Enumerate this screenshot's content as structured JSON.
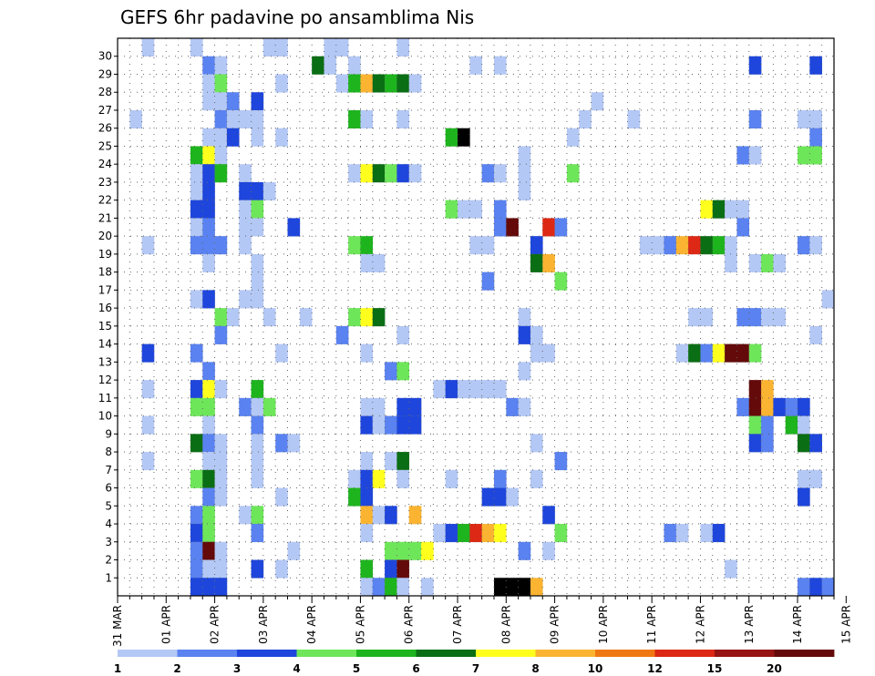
{
  "chart_data": {
    "type": "heatmap",
    "title": "GEFS 6hr padavine po ansamblima Nis",
    "xlabel": "",
    "ylabel": "",
    "y_tick_labels": [
      "1",
      "2",
      "3",
      "4",
      "5",
      "6",
      "7",
      "8",
      "9",
      "10",
      "11",
      "12",
      "13",
      "14",
      "15",
      "16",
      "17",
      "18",
      "19",
      "20",
      "21",
      "22",
      "23",
      "24",
      "25",
      "26",
      "27",
      "28",
      "29",
      "30"
    ],
    "x_tick_labels": [
      "31 MAR",
      "01 APR",
      "02 APR",
      "03 APR",
      "04 APR",
      "05 APR",
      "06 APR",
      "07 APR",
      "08 APR",
      "09 APR",
      "10 APR",
      "11 APR",
      "12 APR",
      "13 APR",
      "14 APR",
      "15 APR"
    ],
    "grid": true,
    "legend": {
      "placement": "bottom",
      "labels": [
        "1",
        "2",
        "3",
        "4",
        "5",
        "6",
        "7",
        "8",
        "10",
        "12",
        "15",
        "20"
      ],
      "colors": [
        "#b4c8f5",
        "#5a82f0",
        "#1e46dc",
        "#6ee65a",
        "#1eb41e",
        "#0a6e14",
        "#ffff1e",
        "#fab432",
        "#f07814",
        "#dc2814",
        "#961414",
        "#640a0a"
      ]
    },
    "bins": [
      {
        "id": "b1",
        "color": "#b4c8f5"
      },
      {
        "id": "b2",
        "color": "#5a82f0"
      },
      {
        "id": "b3",
        "color": "#1e46dc"
      },
      {
        "id": "b4",
        "color": "#6ee65a"
      },
      {
        "id": "b5",
        "color": "#1eb41e"
      },
      {
        "id": "b6",
        "color": "#0a6e14"
      },
      {
        "id": "b7",
        "color": "#ffff1e"
      },
      {
        "id": "b8",
        "color": "#fab432"
      },
      {
        "id": "b10",
        "color": "#f07814"
      },
      {
        "id": "b12",
        "color": "#dc2814"
      },
      {
        "id": "b15",
        "color": "#961414"
      },
      {
        "id": "b20",
        "color": "#640a0a"
      }
    ],
    "cells": [
      [
        30,
        2,
        1
      ],
      [
        30,
        6,
        1
      ],
      [
        30,
        12,
        1
      ],
      [
        30,
        13,
        1
      ],
      [
        30,
        17,
        1
      ],
      [
        30,
        18,
        1
      ],
      [
        30,
        23,
        1
      ],
      [
        29,
        7,
        2
      ],
      [
        29,
        8,
        1
      ],
      [
        29,
        16,
        6
      ],
      [
        29,
        17,
        1
      ],
      [
        29,
        19,
        1
      ],
      [
        29,
        29,
        1
      ],
      [
        29,
        31,
        1
      ],
      [
        29,
        52,
        3
      ],
      [
        29,
        57,
        3
      ],
      [
        28,
        7,
        1
      ],
      [
        28,
        8,
        4
      ],
      [
        28,
        13,
        1
      ],
      [
        28,
        18,
        1
      ],
      [
        28,
        19,
        5
      ],
      [
        28,
        20,
        8
      ],
      [
        28,
        21,
        6
      ],
      [
        28,
        22,
        5
      ],
      [
        28,
        23,
        6
      ],
      [
        28,
        24,
        1
      ],
      [
        27,
        7,
        1
      ],
      [
        27,
        8,
        1
      ],
      [
        27,
        9,
        2
      ],
      [
        27,
        11,
        3
      ],
      [
        27,
        39,
        1
      ],
      [
        26,
        1,
        1
      ],
      [
        26,
        8,
        2
      ],
      [
        26,
        9,
        1
      ],
      [
        26,
        10,
        1
      ],
      [
        26,
        11,
        1
      ],
      [
        26,
        19,
        5
      ],
      [
        26,
        20,
        1
      ],
      [
        26,
        23,
        1
      ],
      [
        26,
        38,
        1
      ],
      [
        26,
        42,
        1
      ],
      [
        26,
        52,
        2
      ],
      [
        26,
        56,
        1
      ],
      [
        26,
        57,
        1
      ],
      [
        25,
        7,
        1
      ],
      [
        25,
        8,
        1
      ],
      [
        25,
        9,
        3
      ],
      [
        25,
        11,
        1
      ],
      [
        25,
        13,
        1
      ],
      [
        25,
        27,
        5
      ],
      [
        25,
        28,
        20
      ],
      [
        25,
        37,
        1
      ],
      [
        25,
        57,
        2
      ],
      [
        24,
        6,
        5
      ],
      [
        24,
        7,
        7
      ],
      [
        24,
        8,
        1
      ],
      [
        24,
        33,
        1
      ],
      [
        24,
        51,
        2
      ],
      [
        24,
        52,
        1
      ],
      [
        24,
        56,
        4
      ],
      [
        24,
        57,
        4
      ],
      [
        23,
        6,
        1
      ],
      [
        23,
        7,
        3
      ],
      [
        23,
        8,
        5
      ],
      [
        23,
        10,
        1
      ],
      [
        23,
        19,
        1
      ],
      [
        23,
        20,
        7
      ],
      [
        23,
        21,
        6
      ],
      [
        23,
        22,
        4
      ],
      [
        23,
        23,
        3
      ],
      [
        23,
        24,
        1
      ],
      [
        23,
        30,
        2
      ],
      [
        23,
        31,
        1
      ],
      [
        23,
        33,
        1
      ],
      [
        23,
        37,
        4
      ],
      [
        22,
        6,
        1
      ],
      [
        22,
        7,
        3
      ],
      [
        22,
        10,
        3
      ],
      [
        22,
        11,
        3
      ],
      [
        22,
        12,
        1
      ],
      [
        22,
        33,
        1
      ],
      [
        21,
        6,
        3
      ],
      [
        21,
        7,
        3
      ],
      [
        21,
        10,
        1
      ],
      [
        21,
        11,
        4
      ],
      [
        21,
        27,
        4
      ],
      [
        21,
        28,
        1
      ],
      [
        21,
        29,
        1
      ],
      [
        21,
        31,
        2
      ],
      [
        21,
        48,
        7
      ],
      [
        21,
        49,
        6
      ],
      [
        21,
        50,
        1
      ],
      [
        21,
        51,
        1
      ],
      [
        20,
        6,
        1
      ],
      [
        20,
        7,
        2
      ],
      [
        20,
        10,
        1
      ],
      [
        20,
        11,
        1
      ],
      [
        20,
        14,
        3
      ],
      [
        20,
        31,
        2
      ],
      [
        20,
        32,
        12
      ],
      [
        20,
        35,
        10
      ],
      [
        20,
        36,
        2
      ],
      [
        20,
        51,
        2
      ],
      [
        19,
        2,
        1
      ],
      [
        19,
        6,
        2
      ],
      [
        19,
        7,
        2
      ],
      [
        19,
        8,
        2
      ],
      [
        19,
        10,
        1
      ],
      [
        19,
        19,
        4
      ],
      [
        19,
        20,
        5
      ],
      [
        19,
        29,
        1
      ],
      [
        19,
        30,
        1
      ],
      [
        19,
        34,
        3
      ],
      [
        19,
        43,
        1
      ],
      [
        19,
        44,
        1
      ],
      [
        19,
        45,
        2
      ],
      [
        19,
        46,
        8
      ],
      [
        19,
        47,
        10
      ],
      [
        19,
        48,
        6
      ],
      [
        19,
        49,
        5
      ],
      [
        19,
        50,
        1
      ],
      [
        19,
        56,
        2
      ],
      [
        19,
        57,
        1
      ],
      [
        18,
        7,
        1
      ],
      [
        18,
        11,
        1
      ],
      [
        18,
        20,
        1
      ],
      [
        18,
        21,
        1
      ],
      [
        18,
        34,
        6
      ],
      [
        18,
        35,
        8
      ],
      [
        18,
        50,
        1
      ],
      [
        18,
        52,
        1
      ],
      [
        18,
        53,
        4
      ],
      [
        18,
        54,
        1
      ],
      [
        17,
        11,
        1
      ],
      [
        17,
        30,
        2
      ],
      [
        17,
        36,
        4
      ],
      [
        16,
        6,
        1
      ],
      [
        16,
        7,
        3
      ],
      [
        16,
        10,
        1
      ],
      [
        16,
        11,
        1
      ],
      [
        16,
        58,
        1
      ],
      [
        15,
        8,
        4
      ],
      [
        15,
        9,
        1
      ],
      [
        15,
        12,
        1
      ],
      [
        15,
        15,
        1
      ],
      [
        15,
        19,
        4
      ],
      [
        15,
        20,
        7
      ],
      [
        15,
        21,
        6
      ],
      [
        15,
        33,
        1
      ],
      [
        15,
        47,
        1
      ],
      [
        15,
        48,
        1
      ],
      [
        15,
        51,
        2
      ],
      [
        15,
        52,
        2
      ],
      [
        15,
        53,
        1
      ],
      [
        15,
        54,
        1
      ],
      [
        14,
        8,
        2
      ],
      [
        14,
        18,
        2
      ],
      [
        14,
        23,
        1
      ],
      [
        14,
        33,
        3
      ],
      [
        14,
        34,
        1
      ],
      [
        14,
        57,
        1
      ],
      [
        13,
        2,
        3
      ],
      [
        13,
        6,
        2
      ],
      [
        13,
        13,
        1
      ],
      [
        13,
        20,
        1
      ],
      [
        13,
        34,
        1
      ],
      [
        13,
        35,
        1
      ],
      [
        13,
        46,
        1
      ],
      [
        13,
        47,
        6
      ],
      [
        13,
        48,
        2
      ],
      [
        13,
        49,
        7
      ],
      [
        13,
        50,
        12
      ],
      [
        13,
        51,
        12
      ],
      [
        13,
        52,
        4
      ],
      [
        12,
        7,
        2
      ],
      [
        12,
        22,
        2
      ],
      [
        12,
        23,
        4
      ],
      [
        12,
        33,
        1
      ],
      [
        11,
        2,
        1
      ],
      [
        11,
        6,
        3
      ],
      [
        11,
        7,
        7
      ],
      [
        11,
        8,
        1
      ],
      [
        11,
        11,
        5
      ],
      [
        11,
        26,
        1
      ],
      [
        11,
        27,
        3
      ],
      [
        11,
        28,
        1
      ],
      [
        11,
        29,
        1
      ],
      [
        11,
        30,
        1
      ],
      [
        11,
        31,
        1
      ],
      [
        11,
        52,
        12
      ],
      [
        11,
        53,
        8
      ],
      [
        10,
        6,
        4
      ],
      [
        10,
        7,
        4
      ],
      [
        10,
        10,
        2
      ],
      [
        10,
        11,
        1
      ],
      [
        10,
        12,
        4
      ],
      [
        10,
        20,
        1
      ],
      [
        10,
        21,
        1
      ],
      [
        10,
        23,
        3
      ],
      [
        10,
        24,
        3
      ],
      [
        10,
        32,
        2
      ],
      [
        10,
        33,
        1
      ],
      [
        10,
        51,
        2
      ],
      [
        10,
        52,
        12
      ],
      [
        10,
        53,
        8
      ],
      [
        10,
        54,
        3
      ],
      [
        10,
        55,
        2
      ],
      [
        10,
        56,
        3
      ],
      [
        9,
        2,
        1
      ],
      [
        9,
        7,
        1
      ],
      [
        9,
        11,
        2
      ],
      [
        9,
        20,
        3
      ],
      [
        9,
        21,
        1
      ],
      [
        9,
        22,
        2
      ],
      [
        9,
        23,
        3
      ],
      [
        9,
        24,
        3
      ],
      [
        9,
        52,
        4
      ],
      [
        9,
        53,
        2
      ],
      [
        9,
        55,
        5
      ],
      [
        9,
        56,
        1
      ],
      [
        8,
        6,
        6
      ],
      [
        8,
        7,
        2
      ],
      [
        8,
        8,
        1
      ],
      [
        8,
        11,
        1
      ],
      [
        8,
        13,
        2
      ],
      [
        8,
        14,
        1
      ],
      [
        8,
        34,
        1
      ],
      [
        8,
        52,
        3
      ],
      [
        8,
        53,
        2
      ],
      [
        8,
        56,
        6
      ],
      [
        8,
        57,
        3
      ],
      [
        7,
        2,
        1
      ],
      [
        7,
        7,
        1
      ],
      [
        7,
        8,
        1
      ],
      [
        7,
        11,
        1
      ],
      [
        7,
        20,
        1
      ],
      [
        7,
        22,
        1
      ],
      [
        7,
        23,
        6
      ],
      [
        7,
        36,
        2
      ],
      [
        6,
        6,
        4
      ],
      [
        6,
        7,
        6
      ],
      [
        6,
        8,
        1
      ],
      [
        6,
        11,
        1
      ],
      [
        6,
        19,
        1
      ],
      [
        6,
        20,
        3
      ],
      [
        6,
        21,
        7
      ],
      [
        6,
        23,
        1
      ],
      [
        6,
        27,
        1
      ],
      [
        6,
        31,
        2
      ],
      [
        6,
        34,
        1
      ],
      [
        6,
        56,
        1
      ],
      [
        6,
        57,
        1
      ],
      [
        5,
        7,
        2
      ],
      [
        5,
        8,
        1
      ],
      [
        5,
        13,
        1
      ],
      [
        5,
        19,
        5
      ],
      [
        5,
        20,
        3
      ],
      [
        5,
        30,
        3
      ],
      [
        5,
        31,
        3
      ],
      [
        5,
        32,
        1
      ],
      [
        5,
        56,
        3
      ],
      [
        4,
        6,
        2
      ],
      [
        4,
        7,
        4
      ],
      [
        4,
        10,
        1
      ],
      [
        4,
        11,
        4
      ],
      [
        4,
        20,
        8
      ],
      [
        4,
        21,
        1
      ],
      [
        4,
        22,
        3
      ],
      [
        4,
        24,
        8
      ],
      [
        4,
        35,
        3
      ],
      [
        3,
        6,
        3
      ],
      [
        3,
        7,
        4
      ],
      [
        3,
        11,
        2
      ],
      [
        3,
        20,
        1
      ],
      [
        3,
        26,
        1
      ],
      [
        3,
        27,
        3
      ],
      [
        3,
        28,
        5
      ],
      [
        3,
        29,
        10
      ],
      [
        3,
        30,
        8
      ],
      [
        3,
        31,
        7
      ],
      [
        3,
        36,
        4
      ],
      [
        3,
        45,
        2
      ],
      [
        3,
        46,
        1
      ],
      [
        3,
        48,
        1
      ],
      [
        3,
        49,
        3
      ],
      [
        2,
        6,
        2
      ],
      [
        2,
        7,
        12
      ],
      [
        2,
        8,
        1
      ],
      [
        2,
        14,
        1
      ],
      [
        2,
        22,
        4
      ],
      [
        2,
        23,
        4
      ],
      [
        2,
        24,
        4
      ],
      [
        2,
        25,
        7
      ],
      [
        2,
        33,
        2
      ],
      [
        2,
        35,
        1
      ],
      [
        1,
        6,
        2
      ],
      [
        1,
        7,
        1
      ],
      [
        1,
        8,
        1
      ],
      [
        1,
        11,
        3
      ],
      [
        1,
        13,
        1
      ],
      [
        1,
        20,
        5
      ],
      [
        1,
        22,
        3
      ],
      [
        1,
        23,
        12
      ],
      [
        1,
        50,
        1
      ],
      [
        0,
        6,
        3
      ],
      [
        0,
        7,
        3
      ],
      [
        0,
        8,
        3
      ],
      [
        0,
        20,
        1
      ],
      [
        0,
        21,
        2
      ],
      [
        0,
        22,
        5
      ],
      [
        0,
        23,
        1
      ],
      [
        0,
        25,
        1
      ],
      [
        0,
        31,
        15
      ],
      [
        0,
        32,
        20
      ],
      [
        0,
        33,
        15
      ],
      [
        0,
        34,
        8
      ],
      [
        0,
        56,
        2
      ],
      [
        0,
        57,
        3
      ],
      [
        0,
        58,
        2
      ]
    ]
  }
}
